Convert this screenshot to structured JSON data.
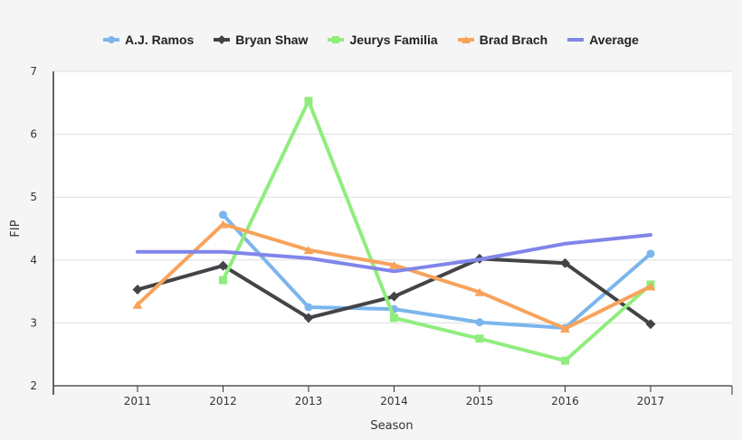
{
  "chart_data": {
    "type": "line",
    "title": "",
    "xlabel": "Season",
    "ylabel": "FIP",
    "ylim": [
      2,
      7
    ],
    "yticks": [
      2,
      3,
      4,
      5,
      6,
      7
    ],
    "categories": [
      "2011",
      "2012",
      "2013",
      "2014",
      "2015",
      "2016",
      "2017"
    ],
    "grid": true,
    "legend_position": "top",
    "series": [
      {
        "name": "A.J. Ramos",
        "color": "#7cb5ec",
        "marker": "circle",
        "values": [
          null,
          4.72,
          3.25,
          3.22,
          3.01,
          2.92,
          4.1
        ]
      },
      {
        "name": "Bryan Shaw",
        "color": "#434348",
        "marker": "diamond",
        "values": [
          3.53,
          3.91,
          3.08,
          3.42,
          4.02,
          3.95,
          2.98
        ]
      },
      {
        "name": "Jeurys Familia",
        "color": "#90ed7d",
        "marker": "square",
        "values": [
          null,
          3.68,
          6.53,
          3.08,
          2.75,
          2.4,
          3.61
        ]
      },
      {
        "name": "Brad Brach",
        "color": "#f7a35c",
        "marker": "triangle",
        "values": [
          3.29,
          4.57,
          4.16,
          3.92,
          3.49,
          2.91,
          3.58
        ]
      },
      {
        "name": "Average",
        "color": "#8085e9",
        "marker": "none",
        "values": [
          4.13,
          4.13,
          4.03,
          3.82,
          4.01,
          4.26,
          4.4
        ]
      }
    ]
  }
}
